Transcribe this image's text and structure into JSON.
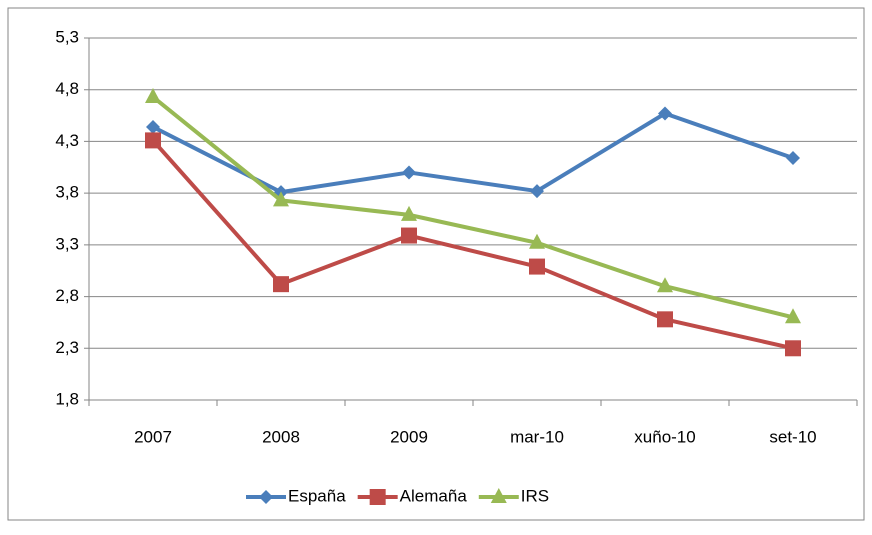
{
  "chart_data": {
    "type": "line",
    "categories": [
      "2007",
      "2008",
      "2009",
      "mar-10",
      "xuño-10",
      "set-10"
    ],
    "series": [
      {
        "name": "España",
        "color": "#4a7ebb",
        "marker": "diamond",
        "values": [
          4.44,
          3.81,
          4.0,
          3.82,
          4.57,
          4.14
        ]
      },
      {
        "name": "Alemaña",
        "color": "#be4b48",
        "marker": "square",
        "values": [
          4.31,
          2.92,
          3.39,
          3.09,
          2.58,
          2.3
        ]
      },
      {
        "name": "IRS",
        "color": "#98b954",
        "marker": "triangle",
        "values": [
          4.73,
          3.73,
          3.59,
          3.32,
          2.9,
          2.6
        ]
      }
    ],
    "ylim": [
      1.8,
      5.3
    ],
    "yticks": [
      {
        "value": 1.8,
        "label": "1,8"
      },
      {
        "value": 2.3,
        "label": "2,3"
      },
      {
        "value": 2.8,
        "label": "2,8"
      },
      {
        "value": 3.3,
        "label": "3,3"
      },
      {
        "value": 3.8,
        "label": "3,8"
      },
      {
        "value": 4.3,
        "label": "4,3"
      },
      {
        "value": 4.8,
        "label": "4,8"
      },
      {
        "value": 5.3,
        "label": "5,3"
      }
    ],
    "grid": true,
    "legend": "bottom"
  }
}
